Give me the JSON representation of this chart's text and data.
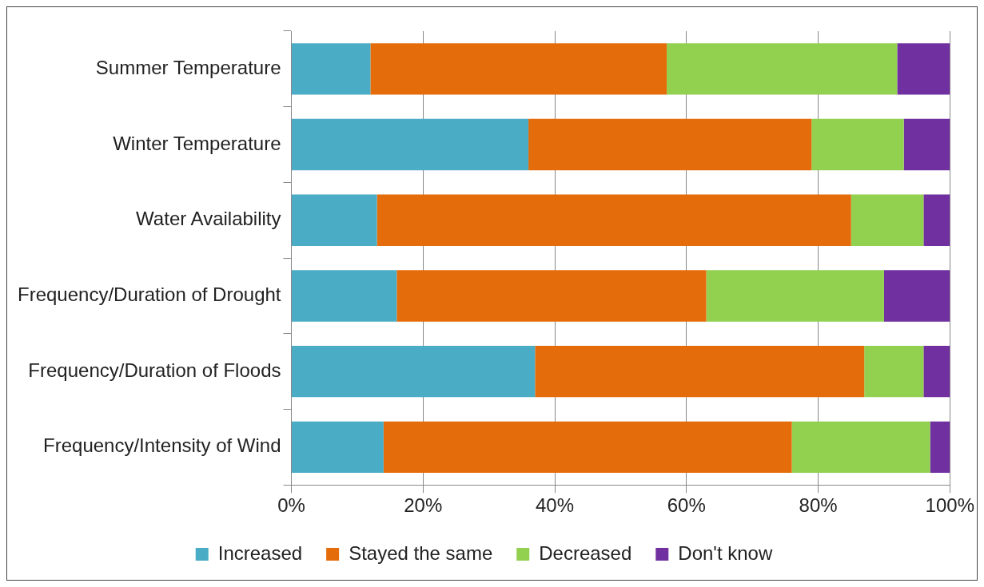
{
  "chart_data": {
    "type": "bar",
    "orientation": "horizontal",
    "stacked": true,
    "categories": [
      "Summer Temperature",
      "Winter Temperature",
      "Water Availability",
      "Frequency/Duration of Drought",
      "Frequency/Duration of Floods",
      "Frequency/Intensity of Wind"
    ],
    "series": [
      {
        "name": "Increased",
        "color": "#4bacc6",
        "values": [
          12,
          36,
          13,
          16,
          37,
          14
        ]
      },
      {
        "name": "Stayed the same",
        "color": "#e46c0a",
        "values": [
          45,
          43,
          72,
          47,
          50,
          62
        ]
      },
      {
        "name": "Decreased",
        "color": "#92d050",
        "values": [
          35,
          14,
          11,
          27,
          9,
          21
        ]
      },
      {
        "name": "Don't know",
        "color": "#7030a0",
        "values": [
          8,
          7,
          4,
          10,
          4,
          3
        ]
      }
    ],
    "xlim": [
      0,
      100
    ],
    "xticks": [
      {
        "value": 0,
        "label": "0%"
      },
      {
        "value": 20,
        "label": "20%"
      },
      {
        "value": 40,
        "label": "40%"
      },
      {
        "value": 60,
        "label": "60%"
      },
      {
        "value": 80,
        "label": "80%"
      },
      {
        "value": 100,
        "label": "100%"
      }
    ],
    "grid": "x",
    "legend": "bottom"
  }
}
